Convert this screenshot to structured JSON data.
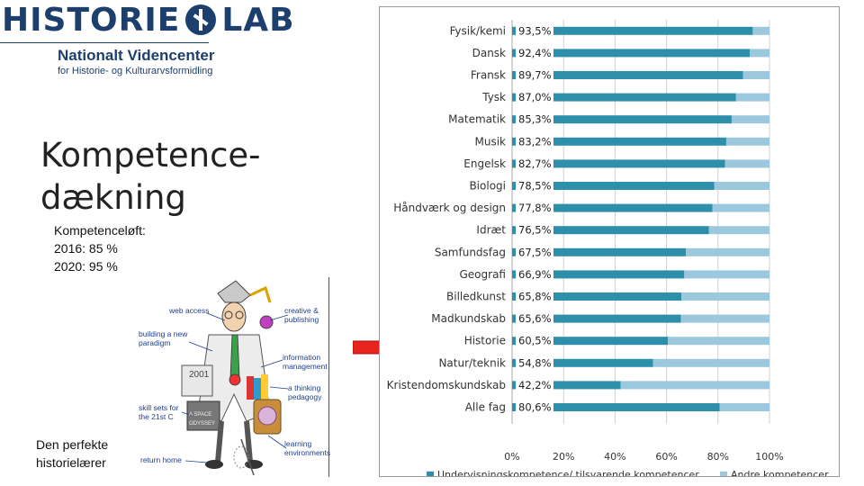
{
  "logo": {
    "word_left": "HISTORIE",
    "word_right": "LAB",
    "line2": "Nationalt Videncenter",
    "line3": "for Historie- og Kulturarvsformidling"
  },
  "title": {
    "line1": "Kompetence-",
    "line2": "dækning"
  },
  "subtitle": {
    "line1": "Kompetenceløft:",
    "line2": "2016: 85 %",
    "line3": "2020: 95 %"
  },
  "illustration": {
    "labels": [
      "web access",
      "creative & publishing",
      "building a new paradigm",
      "information management",
      "a thinking pedagogy",
      "skill sets for the 21st C",
      "return home",
      "learning environments",
      "2001",
      "A SPACE ODYSSEY"
    ]
  },
  "caption": {
    "line1": "Den perfekte",
    "line2": "historielærer"
  },
  "colors": {
    "series1": "#2e8fab",
    "series2": "#9bc8dc",
    "arrow": "#e8231e",
    "label_bg": "#ffffff"
  },
  "chart_data": {
    "type": "bar",
    "orientation": "horizontal",
    "stacked": true,
    "categories": [
      "Fysik/kemi",
      "Dansk",
      "Fransk",
      "Tysk",
      "Matematik",
      "Musik",
      "Engelsk",
      "Biologi",
      "Håndværk og design",
      "Idræt",
      "Samfundsfag",
      "Geografi",
      "Billedkunst",
      "Madkundskab",
      "Historie",
      "Natur/teknik",
      "Kristendomskundskab",
      "Alle fag"
    ],
    "value_labels": [
      "93,5%",
      "92,4%",
      "89,7%",
      "87,0%",
      "85,3%",
      "83,2%",
      "82,7%",
      "78,5%",
      "77,8%",
      "76,5%",
      "67,5%",
      "66,9%",
      "65,8%",
      "65,6%",
      "60,5%",
      "54,8%",
      "42,2%",
      "80,6%"
    ],
    "series": [
      {
        "name": "Undervisningskompetence/ tilsvarende kompetencer",
        "values": [
          93.5,
          92.4,
          89.7,
          87.0,
          85.3,
          83.2,
          82.7,
          78.5,
          77.8,
          76.5,
          67.5,
          66.9,
          65.8,
          65.6,
          60.5,
          54.8,
          42.2,
          80.6
        ]
      },
      {
        "name": "Andre kompetencer",
        "values": [
          6.5,
          7.6,
          10.3,
          13.0,
          14.7,
          16.8,
          17.3,
          21.5,
          22.2,
          23.5,
          32.5,
          33.1,
          34.2,
          34.4,
          39.5,
          45.2,
          57.8,
          19.4
        ]
      }
    ],
    "x_ticks": [
      "0%",
      "20%",
      "40%",
      "60%",
      "80%",
      "100%"
    ],
    "xlim": [
      0,
      100
    ],
    "grid": true,
    "legend": "bottom"
  }
}
